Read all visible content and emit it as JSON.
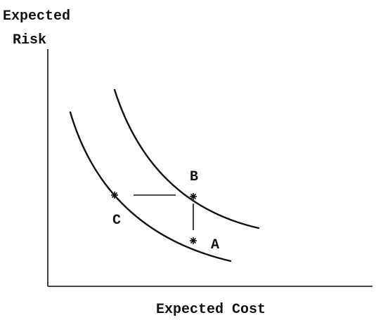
{
  "y_axis_label_lines": [
    "Expected",
    "Risk"
  ],
  "x_axis_label": "Expected Cost",
  "points": [
    {
      "label": "B"
    },
    {
      "label": "C"
    },
    {
      "label": "A"
    }
  ]
}
